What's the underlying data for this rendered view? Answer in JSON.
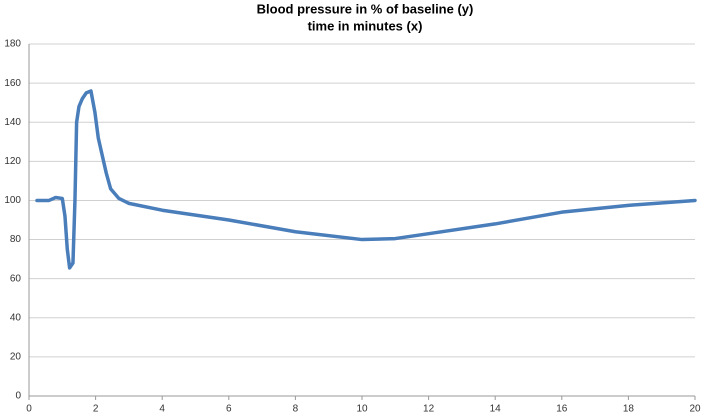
{
  "chart_data": {
    "type": "line",
    "title": "Blood pressure in % of baseline (y)",
    "subtitle": "time in minutes (x)",
    "x": [
      0.24,
      0.6,
      0.8,
      1.0,
      1.08,
      1.15,
      1.22,
      1.32,
      1.38,
      1.43,
      1.5,
      1.6,
      1.72,
      1.86,
      1.98,
      2.08,
      2.2,
      2.32,
      2.45,
      2.7,
      3,
      4,
      6,
      8,
      10,
      11,
      12,
      14,
      16,
      18,
      20
    ],
    "series": [
      {
        "color": "#4a7ebb",
        "values": [
          100,
          100,
          101.5,
          101,
          92,
          75,
          65.5,
          68,
          100,
          140,
          148,
          152,
          155,
          156,
          145,
          132,
          123,
          114,
          106,
          101,
          98.5,
          95,
          90,
          84,
          80,
          80.5,
          83,
          88,
          94,
          97.5,
          100
        ]
      }
    ],
    "xlim": [
      0,
      20
    ],
    "xticks": [
      0,
      2,
      4,
      6,
      8,
      10,
      12,
      14,
      16,
      18,
      20
    ],
    "ylim": [
      0,
      180
    ],
    "yticks": [
      0,
      20,
      40,
      60,
      80,
      100,
      120,
      140,
      160,
      180
    ],
    "grid": true
  }
}
